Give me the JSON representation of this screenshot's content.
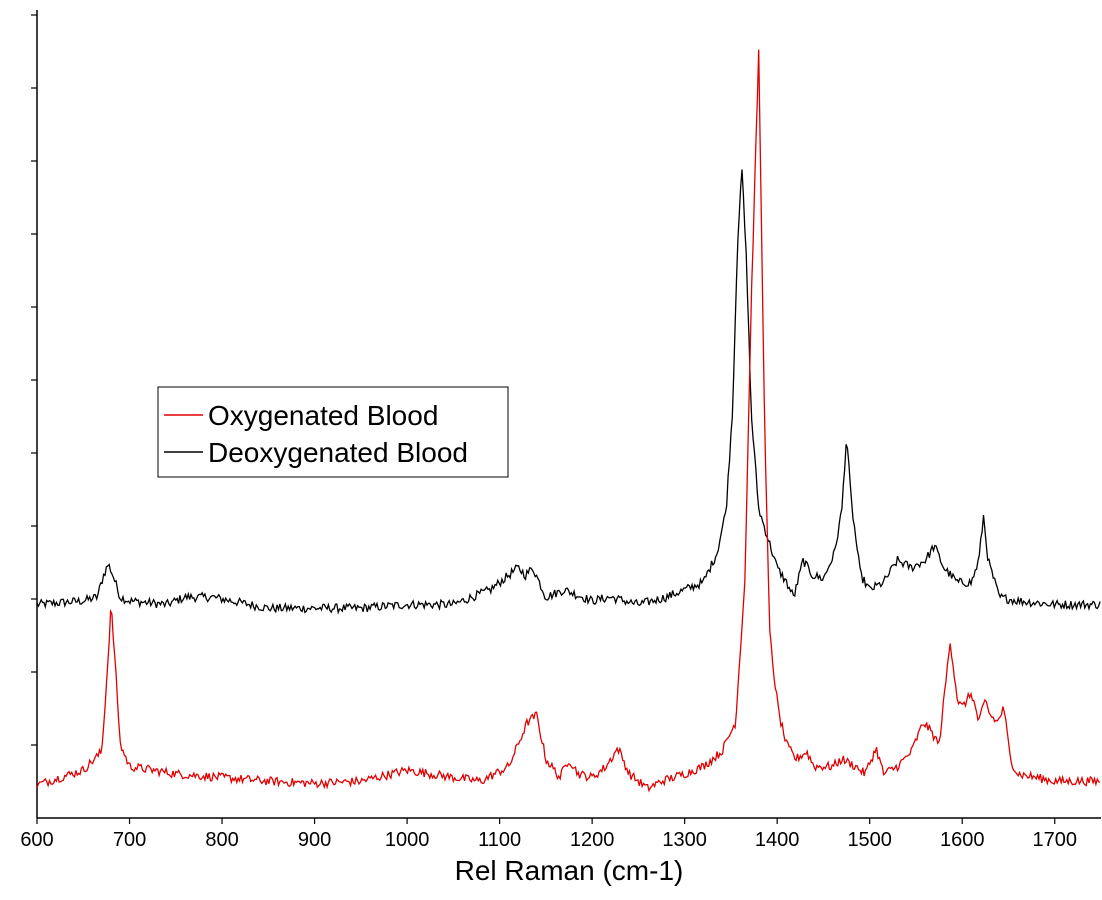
{
  "chart_data": {
    "type": "line",
    "title": "",
    "xlabel": "Rel Raman (cm-1)",
    "ylabel": "",
    "xlim": [
      600,
      1750
    ],
    "ylim": [
      0,
      1.08
    ],
    "x_ticks": [
      600,
      700,
      800,
      900,
      1000,
      1100,
      1200,
      1300,
      1400,
      1500,
      1600,
      1700
    ],
    "y_ticks_count": 11,
    "grid": false,
    "legend_position": "middle-left",
    "series": [
      {
        "name": "Oxygenated Blood",
        "color": "#e00000",
        "x": [
          600,
          650,
          670,
          676,
          680,
          684,
          690,
          700,
          750,
          800,
          850,
          900,
          950,
          1000,
          1050,
          1080,
          1110,
          1130,
          1140,
          1150,
          1165,
          1175,
          1185,
          1200,
          1215,
          1228,
          1240,
          1260,
          1275,
          1300,
          1320,
          1340,
          1355,
          1365,
          1372,
          1380,
          1387,
          1392,
          1397,
          1402,
          1410,
          1420,
          1432,
          1440,
          1460,
          1470,
          1485,
          1495,
          1507,
          1515,
          1530,
          1545,
          1558,
          1565,
          1575,
          1587,
          1595,
          1600,
          1610,
          1618,
          1625,
          1630,
          1638,
          1645,
          1652,
          1660,
          1680,
          1700,
          1750
        ],
        "y": [
          0.045,
          0.065,
          0.09,
          0.2,
          0.29,
          0.22,
          0.1,
          0.07,
          0.06,
          0.055,
          0.05,
          0.047,
          0.05,
          0.065,
          0.055,
          0.05,
          0.07,
          0.13,
          0.14,
          0.08,
          0.055,
          0.08,
          0.06,
          0.055,
          0.07,
          0.095,
          0.06,
          0.04,
          0.05,
          0.06,
          0.07,
          0.09,
          0.13,
          0.32,
          0.7,
          1.04,
          0.5,
          0.25,
          0.19,
          0.14,
          0.1,
          0.08,
          0.09,
          0.07,
          0.07,
          0.08,
          0.07,
          0.06,
          0.095,
          0.06,
          0.07,
          0.09,
          0.13,
          0.12,
          0.1,
          0.24,
          0.16,
          0.15,
          0.17,
          0.13,
          0.16,
          0.14,
          0.13,
          0.15,
          0.08,
          0.06,
          0.055,
          0.05,
          0.05
        ]
      },
      {
        "name": "Deoxygenated Blood",
        "color": "#000000",
        "x": [
          600,
          650,
          665,
          672,
          677,
          682,
          690,
          700,
          740,
          760,
          790,
          850,
          900,
          950,
          1000,
          1050,
          1090,
          1110,
          1120,
          1128,
          1136,
          1150,
          1170,
          1200,
          1220,
          1250,
          1280,
          1300,
          1320,
          1335,
          1345,
          1352,
          1357,
          1362,
          1367,
          1372,
          1380,
          1390,
          1400,
          1410,
          1418,
          1428,
          1438,
          1450,
          1462,
          1470,
          1475,
          1480,
          1490,
          1500,
          1515,
          1525,
          1530,
          1545,
          1560,
          1570,
          1580,
          1595,
          1610,
          1618,
          1623,
          1628,
          1640,
          1660,
          1700,
          1750
        ],
        "y": [
          0.29,
          0.295,
          0.3,
          0.33,
          0.345,
          0.33,
          0.3,
          0.295,
          0.29,
          0.3,
          0.3,
          0.285,
          0.285,
          0.285,
          0.29,
          0.29,
          0.31,
          0.33,
          0.34,
          0.33,
          0.34,
          0.3,
          0.31,
          0.295,
          0.3,
          0.29,
          0.3,
          0.31,
          0.32,
          0.36,
          0.42,
          0.56,
          0.78,
          0.88,
          0.75,
          0.55,
          0.42,
          0.38,
          0.34,
          0.32,
          0.3,
          0.35,
          0.33,
          0.325,
          0.36,
          0.42,
          0.52,
          0.43,
          0.33,
          0.31,
          0.32,
          0.34,
          0.35,
          0.34,
          0.35,
          0.37,
          0.34,
          0.32,
          0.32,
          0.35,
          0.41,
          0.35,
          0.3,
          0.295,
          0.29,
          0.29
        ]
      }
    ]
  }
}
